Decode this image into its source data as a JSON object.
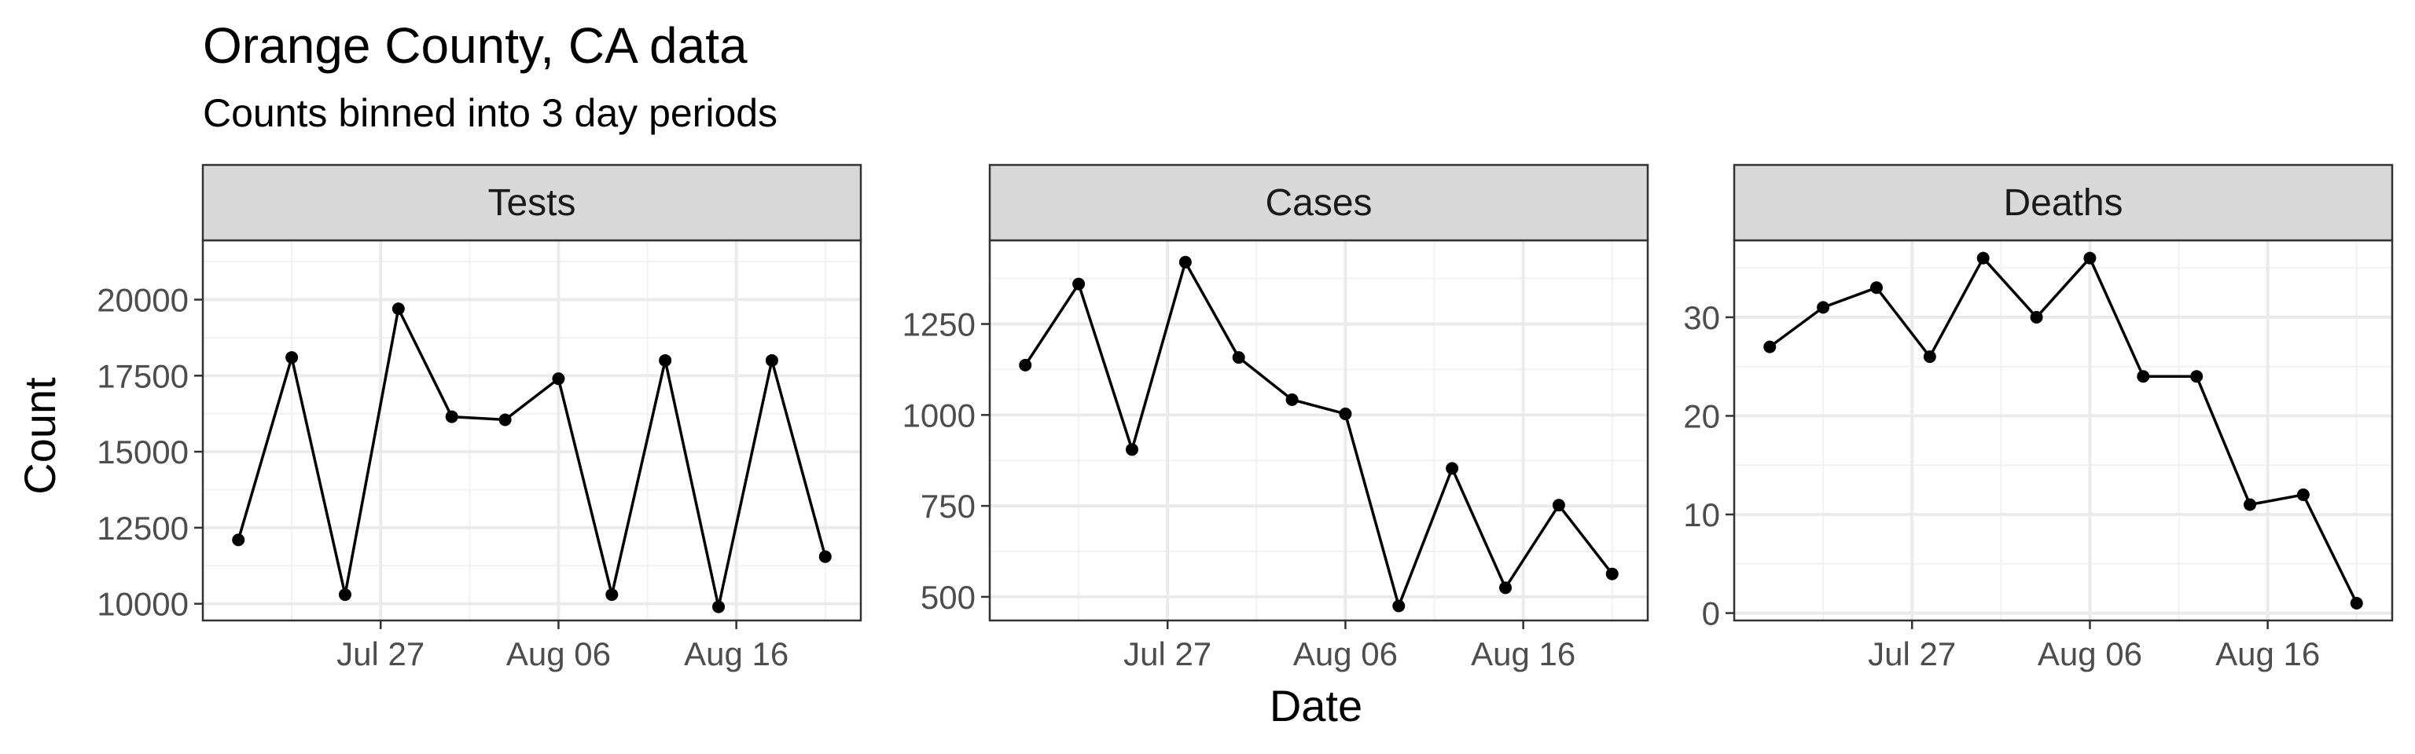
{
  "chart_data": {
    "type": "line",
    "title": "Orange County, CA data",
    "subtitle": "Counts binned into 3 day periods",
    "xlabel": "Date",
    "ylabel": "Count",
    "grid": true,
    "x": [
      "2020-07-19",
      "2020-07-22",
      "2020-07-25",
      "2020-07-28",
      "2020-07-31",
      "2020-08-03",
      "2020-08-06",
      "2020-08-09",
      "2020-08-12",
      "2020-08-15",
      "2020-08-18",
      "2020-08-21"
    ],
    "xlim": [
      "2020-07-17",
      "2020-08-23"
    ],
    "x_ticks": [
      {
        "date": "2020-07-27",
        "label": "Jul 27"
      },
      {
        "date": "2020-08-06",
        "label": "Aug 06"
      },
      {
        "date": "2020-08-16",
        "label": "Aug 16"
      }
    ],
    "panels": [
      {
        "name": "Tests",
        "values": [
          12100,
          18100,
          10300,
          19700,
          16150,
          16050,
          17400,
          10300,
          18000,
          9900,
          18000,
          11550
        ],
        "ylim": [
          9450,
          21950
        ],
        "y_ticks": [
          10000,
          12500,
          15000,
          17500,
          20000
        ],
        "y_tick_labels": [
          "10000",
          "12500",
          "15000",
          "17500",
          "20000"
        ]
      },
      {
        "name": "Cases",
        "values": [
          1137,
          1360,
          905,
          1420,
          1158,
          1042,
          1003,
          475,
          853,
          525,
          752,
          563
        ],
        "ylim": [
          435,
          1480
        ],
        "y_ticks": [
          500,
          750,
          1000,
          1250
        ],
        "y_tick_labels": [
          "500",
          "750",
          "1000",
          "1250"
        ]
      },
      {
        "name": "Deaths",
        "values": [
          27,
          31,
          33,
          26,
          36,
          30,
          36,
          24,
          24,
          11,
          12,
          1
        ],
        "ylim": [
          -0.75,
          37.8
        ],
        "y_ticks": [
          0,
          10,
          20,
          30
        ],
        "y_tick_labels": [
          "0",
          "10",
          "20",
          "30"
        ]
      }
    ]
  }
}
